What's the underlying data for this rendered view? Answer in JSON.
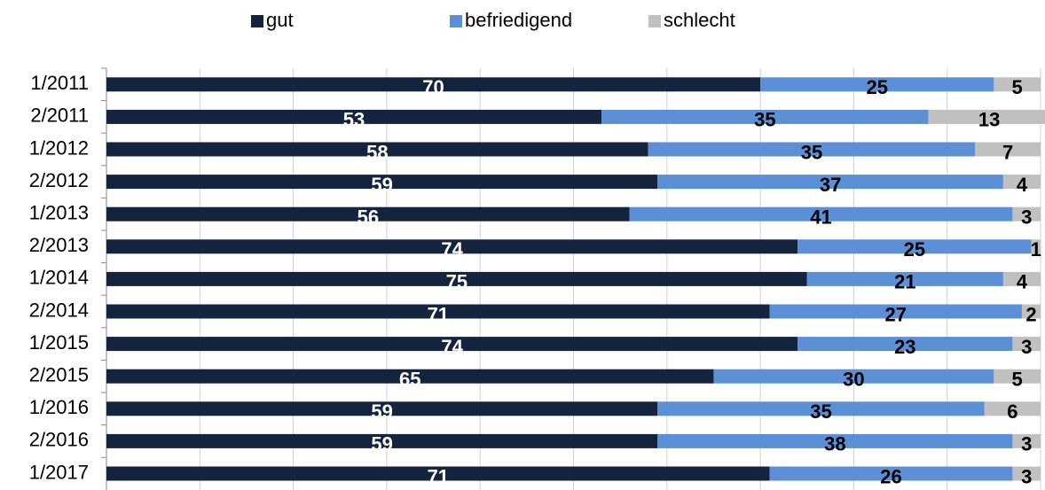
{
  "chart_data": {
    "type": "stacked-barh",
    "categories": [
      "1/2011",
      "2/2011",
      "1/2012",
      "2/2012",
      "1/2013",
      "2/2013",
      "1/2014",
      "2/2014",
      "1/2015",
      "2/2015",
      "1/2016",
      "2/2016",
      "1/2017"
    ],
    "series": [
      {
        "name": "gut",
        "color": "#14243f",
        "label_color": "#ffffff",
        "values": [
          70,
          53,
          58,
          59,
          56,
          74,
          75,
          71,
          74,
          65,
          59,
          59,
          71
        ]
      },
      {
        "name": "befriedigend",
        "color": "#5b8fd6",
        "label_color": "#000000",
        "values": [
          25,
          35,
          35,
          37,
          41,
          25,
          21,
          27,
          23,
          30,
          35,
          38,
          26
        ]
      },
      {
        "name": "schlecht",
        "color": "#c0c0c0",
        "label_color": "#000000",
        "values": [
          5,
          13,
          7,
          4,
          3,
          1,
          4,
          2,
          3,
          5,
          6,
          3,
          3
        ]
      }
    ],
    "xlim": [
      0,
      100
    ],
    "xticks": [
      0,
      10,
      20,
      30,
      40,
      50,
      60,
      70,
      80,
      90,
      100
    ],
    "grid": true,
    "legend": "top"
  }
}
